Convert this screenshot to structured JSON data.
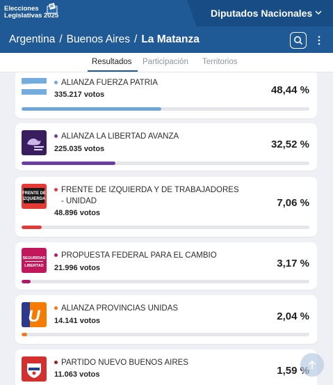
{
  "header": {
    "logo_line1": "Elecciones",
    "logo_line2": "Legislativas 2025",
    "selector_label": "Diputados Nacionales"
  },
  "breadcrumb": {
    "level1": "Argentina",
    "level2": "Buenos Aires",
    "current": "La Matanza",
    "separator": "/"
  },
  "tabs": [
    {
      "label": "Resultados",
      "active": true
    },
    {
      "label": "Participación",
      "active": false
    },
    {
      "label": "Territorios",
      "active": false
    }
  ],
  "colors": {
    "header_bg": "#1f5a96",
    "accent": "#1f5a96"
  },
  "results": [
    {
      "name": "ALIANZA FUERZA PATRIA",
      "votes": "335.217 votos",
      "percent": "48,44 %",
      "share": 48.44,
      "color": "#6fa6d8",
      "dot": "#6fa6d8",
      "logo": "flag-stripes-icon"
    },
    {
      "name": "ALIANZA LA LIBERTAD AVANZA",
      "votes": "225.035 votos",
      "percent": "32,52 %",
      "share": 32.52,
      "color": "#6b3fa0",
      "dot": "#6b3fa0",
      "logo": "lion-logo-icon"
    },
    {
      "name": "FRENTE DE IZQUIERDA Y DE TRABAJADORES - UNIDAD",
      "votes": "48.896 votos",
      "percent": "7,06 %",
      "share": 7.06,
      "color": "#e03a3a",
      "dot": "#e03a3a",
      "logo": "fit-logo-icon",
      "logo_text1": "FRENTE DE",
      "logo_text2": "IZQUIERDA"
    },
    {
      "name": "PROPUESTA FEDERAL PARA EL CAMBIO",
      "votes": "21.996 votos",
      "percent": "3,17 %",
      "share": 3.17,
      "color": "#b0186a",
      "dot": "#b0186a",
      "logo": "seguridad-libertad-icon",
      "logo_text1": "SEGURIDAD",
      "logo_text2": "LIBERTAD"
    },
    {
      "name": "ALIANZA PROVINCIAS UNIDAS",
      "votes": "14.141 votos",
      "percent": "2,04 %",
      "share": 2.04,
      "color": "#f07a20",
      "dot": "#f07a20",
      "logo": "u-logo-icon",
      "logo_text1": "U"
    },
    {
      "name": "PARTIDO NUEVO BUENOS AIRES",
      "votes": "11.063 votos",
      "percent": "1,59 %",
      "share": 1.59,
      "color": "#c0262d",
      "dot": "#9a1f2a",
      "logo": "shield-logo-icon"
    }
  ]
}
